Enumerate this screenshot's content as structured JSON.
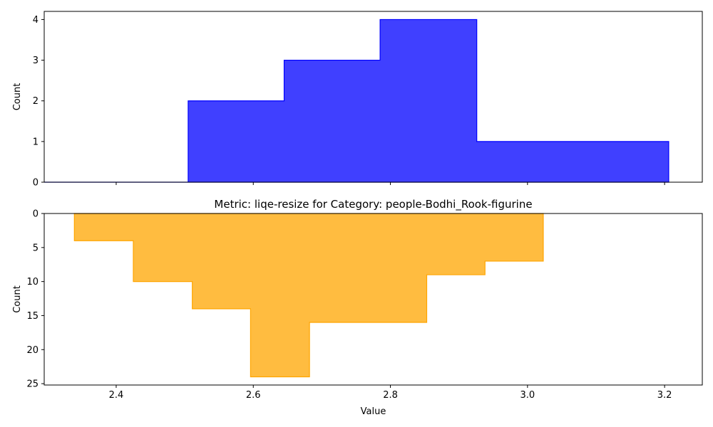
{
  "chart_data": [
    {
      "type": "histogram",
      "title": "",
      "xlabel": "",
      "ylabel": "Count",
      "xlim": [
        2.295,
        3.255
      ],
      "ylim": [
        0,
        4.2
      ],
      "y_inverted": false,
      "xticks": [
        2.4,
        2.6,
        2.8,
        3.0,
        3.2
      ],
      "show_xtick_labels": false,
      "yticks": [
        0,
        1,
        2,
        3,
        4
      ],
      "color": "#0000ff",
      "bin_edges": [
        2.295,
        2.505,
        2.645,
        2.785,
        2.926,
        3.206
      ],
      "counts": [
        0,
        2,
        3,
        4,
        1
      ],
      "grid": false,
      "legend": "none"
    },
    {
      "type": "histogram",
      "title": "Metric: liqe-resize for Category: people-Bodhi_Rook-figurine",
      "xlabel": "Value",
      "ylabel": "Count",
      "xlim": [
        2.295,
        3.255
      ],
      "ylim": [
        0,
        25.2
      ],
      "y_inverted": true,
      "xticks": [
        2.4,
        2.6,
        2.8,
        3.0,
        3.2
      ],
      "show_xtick_labels": true,
      "yticks": [
        0,
        5,
        10,
        15,
        20,
        25
      ],
      "color": "#ffa500",
      "bin_edges": [
        2.339,
        2.425,
        2.511,
        2.596,
        2.682,
        2.767,
        2.853,
        2.938,
        3.023
      ],
      "counts": [
        4,
        10,
        14,
        24,
        16,
        16,
        9,
        7
      ],
      "grid": false,
      "legend": "none"
    }
  ]
}
